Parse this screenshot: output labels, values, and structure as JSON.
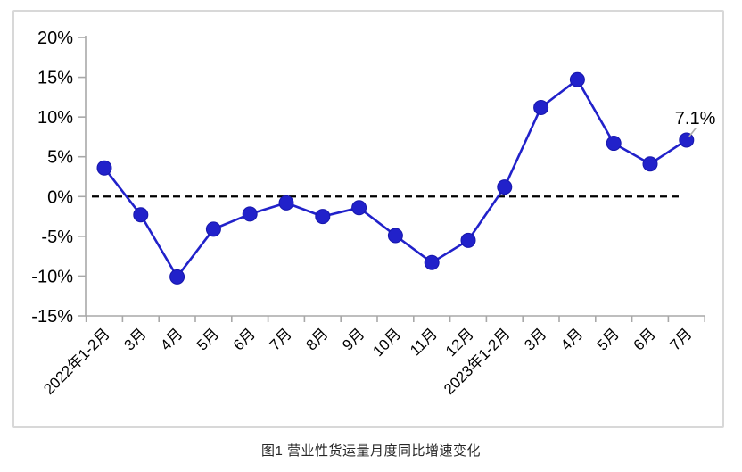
{
  "figure": {
    "caption": "图1 营业性货运量月度同比增速变化"
  },
  "chart_data": {
    "type": "line",
    "title": "图1 营业性货运量月度同比增速变化",
    "categories": [
      "2022年1-2月",
      "3月",
      "4月",
      "5月",
      "6月",
      "7月",
      "8月",
      "9月",
      "10月",
      "11月",
      "12月",
      "2023年1-2月",
      "3月",
      "4月",
      "5月",
      "6月",
      "7月"
    ],
    "series": [
      {
        "name": "营业性货运量月度同比增速",
        "values": [
          3.6,
          -2.3,
          -10.1,
          -4.1,
          -2.2,
          -0.8,
          -2.5,
          -1.4,
          -4.9,
          -8.3,
          -5.5,
          1.2,
          11.2,
          14.7,
          6.7,
          4.1,
          7.1
        ]
      }
    ],
    "ylim": [
      -15,
      20
    ],
    "yticks": [
      {
        "label": "20%",
        "value": 20
      },
      {
        "label": "15%",
        "value": 15
      },
      {
        "label": "10%",
        "value": 10
      },
      {
        "label": "5%",
        "value": 5
      },
      {
        "label": "0%",
        "value": 0
      },
      {
        "label": "-5%",
        "value": -5
      },
      {
        "label": "-10%",
        "value": -10
      },
      {
        "label": "-15%",
        "value": -15
      }
    ],
    "xlabel": "",
    "ylabel": "",
    "grid": false,
    "legend_position": "none",
    "zero_line_style": "dashed",
    "annotation": {
      "text": "7.1%",
      "point_index": 16
    },
    "colors": {
      "line": "#2121ca",
      "marker": "#2121ca",
      "zero_line": "#000000",
      "axis": "#a8a8a8",
      "box_border": "#d8d8d8",
      "label_text": "#000000",
      "leader_line": "#ababab"
    }
  }
}
